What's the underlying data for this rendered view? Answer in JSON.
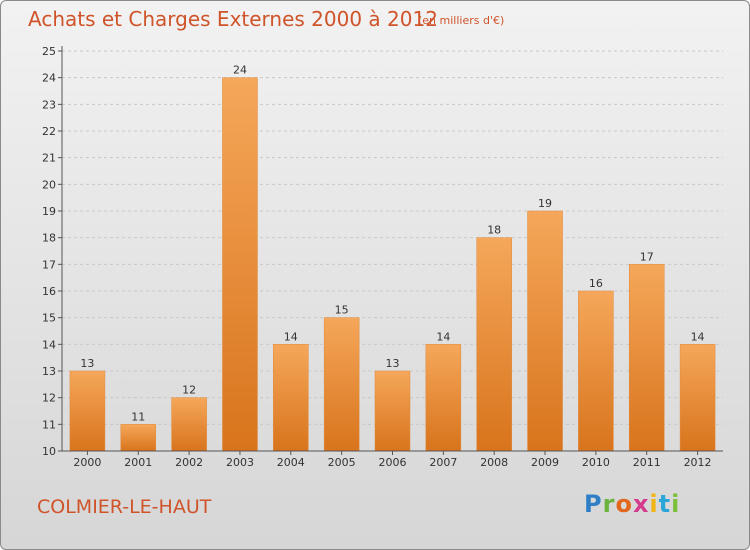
{
  "header": {
    "title": "Achats et Charges Externes 2000 à 2012",
    "unit": "(en milliers d'€)"
  },
  "footer": {
    "commune": "COLMIER-LE-HAUT",
    "logo_letters": [
      "P",
      "r",
      "o",
      "x",
      "i",
      "t",
      "i"
    ]
  },
  "colors": {
    "title": "#d0542a",
    "bar_top": "#f5a75a",
    "bar_bottom": "#d8741c",
    "grid": "#c8c8c8"
  },
  "chart_data": {
    "type": "bar",
    "title": "Achats et Charges Externes 2000 à 2012",
    "categories": [
      "2000",
      "2001",
      "2002",
      "2003",
      "2004",
      "2005",
      "2006",
      "2007",
      "2008",
      "2009",
      "2010",
      "2011",
      "2012"
    ],
    "values": [
      13,
      11,
      12,
      24,
      14,
      15,
      13,
      14,
      18,
      19,
      16,
      17,
      14
    ],
    "xlabel": "",
    "ylabel": "",
    "ylim": [
      10,
      25
    ],
    "yticks": [
      10,
      11,
      12,
      13,
      14,
      15,
      16,
      17,
      18,
      19,
      20,
      21,
      22,
      23,
      24,
      25
    ],
    "grid": true,
    "data_labels": true
  }
}
